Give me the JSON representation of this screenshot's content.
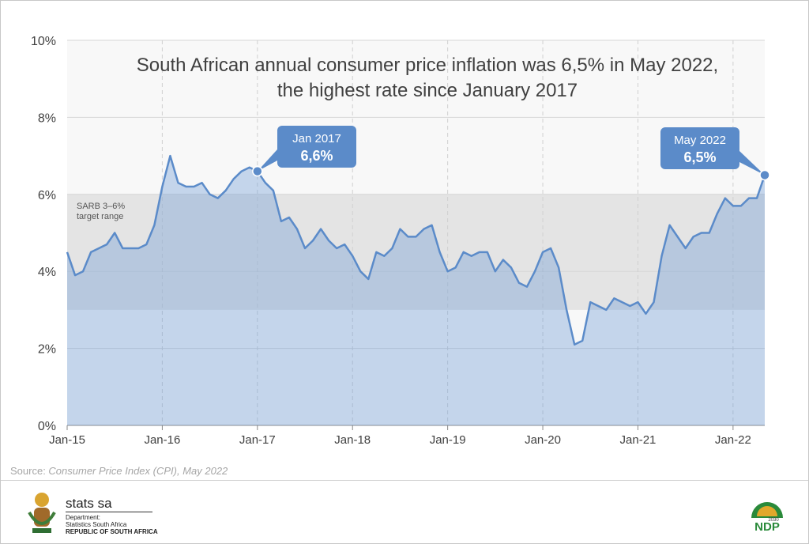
{
  "chart_data": {
    "type": "line",
    "title": "South African annual consumer price inflation was 6,5% in May 2022, the highest rate since January 2017",
    "x": [
      "Jan-15",
      null,
      null,
      null,
      null,
      null,
      null,
      null,
      null,
      null,
      null,
      null,
      "Jan-16",
      null,
      null,
      null,
      null,
      null,
      null,
      null,
      null,
      null,
      null,
      null,
      "Jan-17",
      null,
      null,
      null,
      null,
      null,
      null,
      null,
      null,
      null,
      null,
      null,
      "Jan-18",
      null,
      null,
      null,
      null,
      null,
      null,
      null,
      null,
      null,
      null,
      null,
      "Jan-19",
      null,
      null,
      null,
      null,
      null,
      null,
      null,
      null,
      null,
      null,
      null,
      "Jan-20",
      null,
      null,
      null,
      null,
      null,
      null,
      null,
      null,
      null,
      null,
      null,
      "Jan-21",
      null,
      null,
      null,
      null,
      null,
      null,
      null,
      null,
      null,
      null,
      null,
      "Jan-22",
      null,
      null,
      null,
      null
    ],
    "series": [
      {
        "color": "#5b8bc9",
        "values": [
          4.5,
          3.9,
          4.0,
          4.5,
          4.6,
          4.7,
          5.0,
          4.6,
          4.6,
          4.6,
          4.7,
          5.2,
          6.2,
          7.0,
          6.3,
          6.2,
          6.2,
          6.3,
          6.0,
          5.9,
          6.1,
          6.4,
          6.6,
          6.7,
          6.6,
          6.3,
          6.1,
          5.3,
          5.4,
          5.1,
          4.6,
          4.8,
          5.1,
          4.8,
          4.6,
          4.7,
          4.4,
          4.0,
          3.8,
          4.5,
          4.4,
          4.6,
          5.1,
          4.9,
          4.9,
          5.1,
          5.2,
          4.5,
          4.0,
          4.1,
          4.5,
          4.4,
          4.5,
          4.5,
          4.0,
          4.3,
          4.1,
          3.7,
          3.6,
          4.0,
          4.5,
          4.6,
          4.1,
          3.0,
          2.1,
          2.2,
          3.2,
          3.1,
          3.0,
          3.3,
          3.2,
          3.1,
          3.2,
          2.9,
          3.2,
          4.4,
          5.2,
          4.9,
          4.6,
          4.9,
          5.0,
          5.0,
          5.5,
          5.9,
          5.7,
          5.7,
          5.9,
          5.9,
          6.5
        ]
      }
    ],
    "ylim": [
      0,
      10
    ],
    "yticks": [
      {
        "value": 0,
        "label": "0%"
      },
      {
        "value": 2,
        "label": "2%"
      },
      {
        "value": 4,
        "label": "4%"
      },
      {
        "value": 6,
        "label": "6%"
      },
      {
        "value": 8,
        "label": "8%"
      },
      {
        "value": 10,
        "label": "10%"
      }
    ],
    "grid": true,
    "target_range": {
      "values": [
        3,
        6
      ],
      "label_lines": [
        "SARB 3–6%",
        "target range"
      ]
    },
    "annotations": [
      {
        "label": "Jan 2017",
        "value_label": "6,6%"
      },
      {
        "label": "May 2022",
        "value_label": "6,5%"
      }
    ],
    "source": {
      "prefix": "Source: ",
      "text": "Consumer Price Index (CPI), May 2022"
    }
  },
  "footer": {
    "brand": "stats sa",
    "dept": "Department:",
    "org": "Statistics South Africa",
    "country": "REPUBLIC OF SOUTH AFRICA",
    "ndp": "NDP",
    "ndp_year": "2030"
  }
}
